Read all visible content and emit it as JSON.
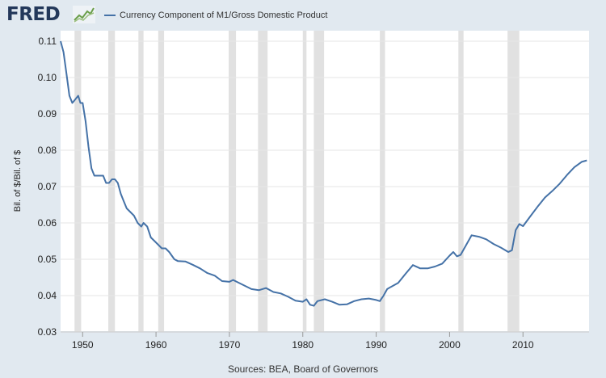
{
  "logo": {
    "text": "FRED"
  },
  "legend": {
    "label": "Currency Component of M1/Gross Domestic Product",
    "color": "#4572a7"
  },
  "source": "Sources: BEA, Board of Governors",
  "chart_data": {
    "type": "line",
    "title": "",
    "xlabel": "",
    "ylabel": "Bil. of $/Bil. of $",
    "xlim": [
      1947,
      2019
    ],
    "ylim": [
      0.03,
      0.11
    ],
    "x_ticks": [
      1950,
      1960,
      1970,
      1980,
      1990,
      2000,
      2010
    ],
    "y_ticks": [
      0.03,
      0.04,
      0.05,
      0.06,
      0.07,
      0.08,
      0.09,
      0.1,
      0.11
    ],
    "y_tick_labels": [
      "0.03",
      "0.04",
      "0.05",
      "0.06",
      "0.07",
      "0.08",
      "0.09",
      "0.10",
      "0.11"
    ],
    "grid": "horizontal",
    "recessions": [
      [
        1948.9,
        1949.8
      ],
      [
        1953.5,
        1954.4
      ],
      [
        1957.6,
        1958.3
      ],
      [
        1960.3,
        1961.1
      ],
      [
        1969.9,
        1970.9
      ],
      [
        1973.9,
        1975.2
      ],
      [
        1980.0,
        1980.5
      ],
      [
        1981.5,
        1982.9
      ],
      [
        1990.5,
        1991.2
      ],
      [
        2001.2,
        2001.9
      ],
      [
        2007.9,
        2009.5
      ]
    ],
    "series": [
      {
        "name": "Currency Component of M1/Gross Domestic Product",
        "color": "#4572a7",
        "x": [
          1947.0,
          1947.4,
          1947.8,
          1948.2,
          1948.6,
          1949.0,
          1949.4,
          1949.7,
          1950.0,
          1950.4,
          1950.8,
          1951.2,
          1951.6,
          1952.0,
          1952.4,
          1952.8,
          1953.2,
          1953.6,
          1954.0,
          1954.4,
          1954.8,
          1955.2,
          1955.6,
          1956.0,
          1956.5,
          1957.0,
          1957.5,
          1958.0,
          1958.3,
          1958.8,
          1959.3,
          1959.8,
          1960.3,
          1960.8,
          1961.3,
          1961.8,
          1962.5,
          1963.0,
          1964.0,
          1965.0,
          1966.0,
          1967.0,
          1968.0,
          1969.0,
          1970.0,
          1970.5,
          1971.0,
          1972.0,
          1973.0,
          1974.0,
          1975.0,
          1976.0,
          1977.0,
          1978.0,
          1979.0,
          1980.0,
          1980.5,
          1981.0,
          1981.5,
          1982.0,
          1983.0,
          1984.0,
          1985.0,
          1986.0,
          1987.0,
          1988.0,
          1989.0,
          1990.0,
          1990.5,
          1991.0,
          1991.5,
          1992.0,
          1993.0,
          1994.0,
          1995.0,
          1996.0,
          1997.0,
          1998.0,
          1999.0,
          2000.0,
          2000.5,
          2001.0,
          2001.5,
          2002.0,
          2003.0,
          2004.0,
          2005.0,
          2006.0,
          2007.0,
          2008.0,
          2008.5,
          2009.0,
          2009.5,
          2010.0,
          2011.0,
          2012.0,
          2013.0,
          2014.0,
          2015.0,
          2016.0,
          2017.0,
          2018.0,
          2018.7
        ],
        "values": [
          0.11,
          0.107,
          0.101,
          0.095,
          0.093,
          0.094,
          0.095,
          0.093,
          0.093,
          0.088,
          0.081,
          0.075,
          0.073,
          0.073,
          0.073,
          0.073,
          0.071,
          0.071,
          0.072,
          0.072,
          0.071,
          0.068,
          0.066,
          0.064,
          0.063,
          0.062,
          0.06,
          0.059,
          0.06,
          0.059,
          0.056,
          0.055,
          0.054,
          0.053,
          0.053,
          0.052,
          0.05,
          0.0495,
          0.0494,
          0.0485,
          0.0475,
          0.0462,
          0.0455,
          0.044,
          0.0438,
          0.0443,
          0.0438,
          0.0428,
          0.0418,
          0.0415,
          0.0421,
          0.041,
          0.0406,
          0.0397,
          0.0386,
          0.0383,
          0.039,
          0.0375,
          0.0372,
          0.0385,
          0.039,
          0.0383,
          0.0375,
          0.0376,
          0.0385,
          0.039,
          0.0392,
          0.0388,
          0.0385,
          0.04,
          0.0418,
          0.0424,
          0.0435,
          0.046,
          0.0484,
          0.0475,
          0.0475,
          0.048,
          0.0488,
          0.051,
          0.052,
          0.0508,
          0.0512,
          0.053,
          0.0566,
          0.0562,
          0.0555,
          0.0542,
          0.0532,
          0.052,
          0.0525,
          0.058,
          0.0597,
          0.0591,
          0.0618,
          0.0645,
          0.067,
          0.0688,
          0.0708,
          0.0732,
          0.0753,
          0.0768,
          0.0772
        ]
      }
    ]
  }
}
